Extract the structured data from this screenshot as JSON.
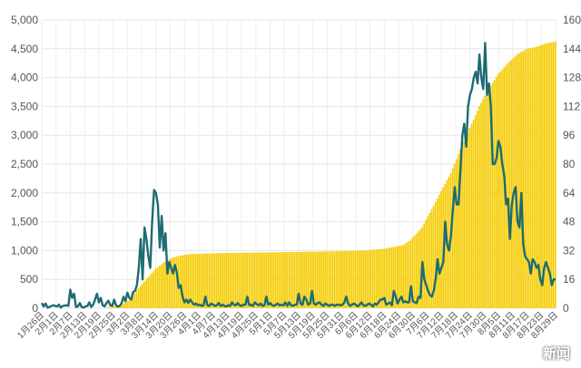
{
  "chart_data": {
    "type": "bar",
    "title": "",
    "xlabel": "",
    "ylabel_left": "",
    "ylabel_right": "",
    "grid": true,
    "y_left": {
      "min": 0,
      "max": 5000,
      "ticks": [
        "0",
        "500",
        "1,000",
        "1,500",
        "2,000",
        "2,500",
        "3,000",
        "3,500",
        "4,000",
        "4,500",
        "5,000"
      ]
    },
    "y_right": {
      "min": 0,
      "max": 160,
      "ticks": [
        "0",
        "16",
        "32",
        "48",
        "64",
        "80",
        "96",
        "112",
        "128",
        "144",
        "160"
      ]
    },
    "x_ticks": [
      "1月26日",
      "2月1日",
      "2月7日",
      "2月13日",
      "2月19日",
      "2月25日",
      "3月2日",
      "3月8日",
      "3月14日",
      "3月20日",
      "3月26日",
      "4月1日",
      "4月7日",
      "4月13日",
      "4月19日",
      "4月25日",
      "5月1日",
      "5月7日",
      "5月13日",
      "5月19日",
      "5月25日",
      "5月31日",
      "6月6日",
      "6月12日",
      "6月18日",
      "6月24日",
      "6月30日",
      "7月6日",
      "7月12日",
      "7月18日",
      "7月24日",
      "7月30日",
      "8月5日",
      "8月11日",
      "8月17日",
      "8月23日",
      "8月29日"
    ],
    "series": [
      {
        "name": "",
        "type": "bar",
        "axis": "right",
        "color": "#F5CC00",
        "knots": [
          [
            0,
            0
          ],
          [
            33,
            0
          ],
          [
            42,
            2
          ],
          [
            47,
            5
          ],
          [
            50,
            10
          ],
          [
            55,
            16
          ],
          [
            60,
            22
          ],
          [
            65,
            26
          ],
          [
            69,
            28
          ],
          [
            72,
            29
          ],
          [
            78,
            30
          ],
          [
            90,
            30.5
          ],
          [
            120,
            31
          ],
          [
            150,
            31.5
          ],
          [
            170,
            32
          ],
          [
            180,
            33
          ],
          [
            190,
            35
          ],
          [
            194,
            38
          ],
          [
            200,
            45
          ],
          [
            205,
            55
          ],
          [
            210,
            65
          ],
          [
            215,
            75
          ],
          [
            220,
            88
          ],
          [
            225,
            100
          ],
          [
            230,
            112
          ],
          [
            235,
            122
          ],
          [
            240,
            130
          ],
          [
            245,
            136
          ],
          [
            250,
            141
          ],
          [
            255,
            144
          ],
          [
            260,
            145
          ],
          [
            265,
            147
          ],
          [
            270,
            148
          ]
        ]
      },
      {
        "name": "",
        "type": "line",
        "axis": "left",
        "color": "#1E6B72",
        "knots": [
          [
            0,
            90
          ],
          [
            1,
            30
          ],
          [
            2,
            80
          ],
          [
            3,
            10
          ],
          [
            4,
            20
          ],
          [
            6,
            50
          ],
          [
            8,
            30
          ],
          [
            9,
            60
          ],
          [
            10,
            10
          ],
          [
            11,
            40
          ],
          [
            13,
            50
          ],
          [
            14,
            40
          ],
          [
            15,
            320
          ],
          [
            16,
            180
          ],
          [
            17,
            250
          ],
          [
            18,
            20
          ],
          [
            19,
            30
          ],
          [
            20,
            90
          ],
          [
            21,
            20
          ],
          [
            22,
            10
          ],
          [
            23,
            30
          ],
          [
            24,
            40
          ],
          [
            25,
            100
          ],
          [
            26,
            20
          ],
          [
            27,
            60
          ],
          [
            28,
            150
          ],
          [
            29,
            250
          ],
          [
            30,
            100
          ],
          [
            31,
            180
          ],
          [
            32,
            50
          ],
          [
            33,
            30
          ],
          [
            34,
            90
          ],
          [
            35,
            130
          ],
          [
            36,
            50
          ],
          [
            37,
            40
          ],
          [
            38,
            150
          ],
          [
            39,
            50
          ],
          [
            40,
            30
          ],
          [
            41,
            40
          ],
          [
            42,
            90
          ],
          [
            43,
            200
          ],
          [
            44,
            120
          ],
          [
            45,
            270
          ],
          [
            46,
            180
          ],
          [
            47,
            150
          ],
          [
            48,
            280
          ],
          [
            49,
            300
          ],
          [
            50,
            400
          ],
          [
            51,
            700
          ],
          [
            52,
            1200
          ],
          [
            53,
            500
          ],
          [
            54,
            1400
          ],
          [
            55,
            1200
          ],
          [
            56,
            900
          ],
          [
            57,
            700
          ],
          [
            58,
            1500
          ],
          [
            59,
            2050
          ],
          [
            60,
            2000
          ],
          [
            61,
            1800
          ],
          [
            62,
            1050
          ],
          [
            63,
            1600
          ],
          [
            64,
            1000
          ],
          [
            65,
            1300
          ],
          [
            66,
            600
          ],
          [
            67,
            800
          ],
          [
            68,
            700
          ],
          [
            69,
            600
          ],
          [
            70,
            750
          ],
          [
            71,
            620
          ],
          [
            72,
            350
          ],
          [
            73,
            400
          ],
          [
            74,
            200
          ],
          [
            75,
            100
          ],
          [
            76,
            150
          ],
          [
            77,
            90
          ],
          [
            78,
            150
          ],
          [
            79,
            100
          ],
          [
            80,
            60
          ],
          [
            81,
            80
          ],
          [
            82,
            50
          ],
          [
            83,
            60
          ],
          [
            84,
            40
          ],
          [
            85,
            50
          ],
          [
            86,
            200
          ],
          [
            87,
            50
          ],
          [
            88,
            40
          ],
          [
            89,
            80
          ],
          [
            90,
            60
          ],
          [
            91,
            40
          ],
          [
            92,
            50
          ],
          [
            93,
            90
          ],
          [
            94,
            40
          ],
          [
            95,
            60
          ],
          [
            96,
            40
          ],
          [
            97,
            30
          ],
          [
            98,
            50
          ],
          [
            99,
            40
          ],
          [
            100,
            100
          ],
          [
            101,
            60
          ],
          [
            102,
            50
          ],
          [
            103,
            90
          ],
          [
            104,
            50
          ],
          [
            105,
            40
          ],
          [
            106,
            60
          ],
          [
            107,
            60
          ],
          [
            108,
            200
          ],
          [
            109,
            50
          ],
          [
            110,
            60
          ],
          [
            111,
            40
          ],
          [
            112,
            100
          ],
          [
            113,
            70
          ],
          [
            114,
            50
          ],
          [
            115,
            80
          ],
          [
            116,
            40
          ],
          [
            117,
            50
          ],
          [
            118,
            200
          ],
          [
            119,
            60
          ],
          [
            120,
            90
          ],
          [
            121,
            50
          ],
          [
            122,
            40
          ],
          [
            123,
            60
          ],
          [
            124,
            80
          ],
          [
            125,
            50
          ],
          [
            126,
            60
          ],
          [
            127,
            50
          ],
          [
            128,
            100
          ],
          [
            129,
            40
          ],
          [
            130,
            100
          ],
          [
            131,
            50
          ],
          [
            132,
            40
          ],
          [
            133,
            60
          ],
          [
            134,
            60
          ],
          [
            135,
            250
          ],
          [
            136,
            80
          ],
          [
            137,
            60
          ],
          [
            138,
            200
          ],
          [
            139,
            150
          ],
          [
            140,
            60
          ],
          [
            141,
            80
          ],
          [
            142,
            300
          ],
          [
            143,
            80
          ],
          [
            144,
            60
          ],
          [
            145,
            90
          ],
          [
            146,
            100
          ],
          [
            147,
            60
          ],
          [
            148,
            40
          ],
          [
            149,
            80
          ],
          [
            150,
            60
          ],
          [
            151,
            40
          ],
          [
            152,
            60
          ],
          [
            153,
            60
          ],
          [
            154,
            40
          ],
          [
            155,
            60
          ],
          [
            156,
            60
          ],
          [
            157,
            50
          ],
          [
            158,
            60
          ],
          [
            159,
            100
          ],
          [
            160,
            200
          ],
          [
            161,
            80
          ],
          [
            162,
            40
          ],
          [
            163,
            60
          ],
          [
            164,
            80
          ],
          [
            165,
            60
          ],
          [
            166,
            30
          ],
          [
            167,
            60
          ],
          [
            168,
            100
          ],
          [
            169,
            50
          ],
          [
            170,
            40
          ],
          [
            171,
            60
          ],
          [
            172,
            80
          ],
          [
            173,
            60
          ],
          [
            174,
            30
          ],
          [
            175,
            80
          ],
          [
            176,
            60
          ],
          [
            177,
            100
          ],
          [
            178,
            150
          ],
          [
            179,
            150
          ],
          [
            180,
            180
          ],
          [
            181,
            60
          ],
          [
            182,
            80
          ],
          [
            183,
            100
          ],
          [
            184,
            50
          ],
          [
            185,
            300
          ],
          [
            186,
            200
          ],
          [
            187,
            80
          ],
          [
            188,
            150
          ],
          [
            189,
            200
          ],
          [
            190,
            100
          ],
          [
            191,
            120
          ],
          [
            192,
            100
          ],
          [
            193,
            100
          ],
          [
            194,
            380
          ],
          [
            195,
            120
          ],
          [
            196,
            100
          ],
          [
            197,
            90
          ],
          [
            198,
            200
          ],
          [
            199,
            180
          ],
          [
            200,
            800
          ],
          [
            201,
            500
          ],
          [
            202,
            400
          ],
          [
            203,
            300
          ],
          [
            204,
            230
          ],
          [
            205,
            200
          ],
          [
            206,
            300
          ],
          [
            207,
            500
          ],
          [
            208,
            850
          ],
          [
            209,
            600
          ],
          [
            210,
            700
          ],
          [
            211,
            800
          ],
          [
            212,
            1500
          ],
          [
            213,
            1100
          ],
          [
            214,
            1000
          ],
          [
            215,
            1250
          ],
          [
            216,
            1700
          ],
          [
            217,
            2100
          ],
          [
            218,
            1800
          ],
          [
            219,
            1800
          ],
          [
            220,
            2400
          ],
          [
            221,
            3000
          ],
          [
            222,
            3200
          ],
          [
            223,
            2800
          ],
          [
            224,
            3500
          ],
          [
            225,
            3700
          ],
          [
            226,
            3800
          ],
          [
            227,
            4000
          ],
          [
            228,
            4100
          ],
          [
            229,
            3900
          ],
          [
            230,
            4400
          ],
          [
            231,
            4000
          ],
          [
            232,
            3800
          ],
          [
            233,
            4600
          ],
          [
            234,
            3700
          ],
          [
            235,
            3900
          ],
          [
            236,
            3500
          ],
          [
            237,
            2500
          ],
          [
            238,
            2500
          ],
          [
            239,
            2600
          ],
          [
            240,
            2900
          ],
          [
            241,
            2800
          ],
          [
            242,
            2500
          ],
          [
            243,
            2300
          ],
          [
            244,
            1800
          ],
          [
            245,
            1900
          ],
          [
            246,
            1200
          ],
          [
            247,
            1800
          ],
          [
            248,
            2000
          ],
          [
            249,
            2100
          ],
          [
            250,
            1500
          ],
          [
            251,
            1400
          ],
          [
            252,
            2000
          ],
          [
            253,
            1100
          ],
          [
            254,
            900
          ],
          [
            255,
            850
          ],
          [
            256,
            800
          ],
          [
            257,
            600
          ],
          [
            258,
            850
          ],
          [
            259,
            800
          ],
          [
            260,
            700
          ],
          [
            261,
            750
          ],
          [
            262,
            500
          ],
          [
            263,
            400
          ],
          [
            264,
            700
          ],
          [
            265,
            800
          ],
          [
            266,
            700
          ],
          [
            267,
            600
          ],
          [
            268,
            400
          ],
          [
            269,
            500
          ],
          [
            270,
            500
          ]
        ]
      }
    ],
    "watermark": "新闻"
  }
}
